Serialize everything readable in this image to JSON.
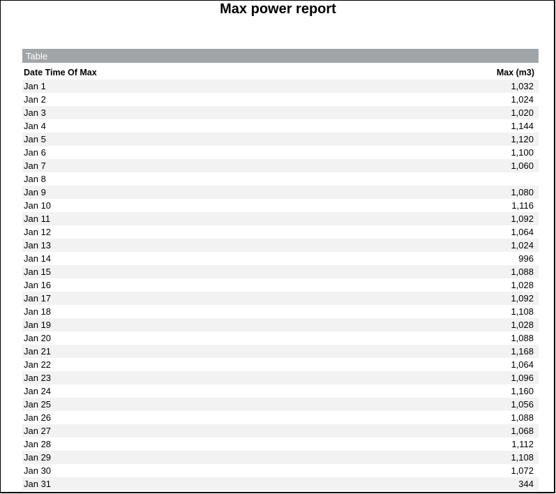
{
  "title": "Max power report",
  "section_label": "Table",
  "columns": [
    "Date Time Of Max",
    "Max (m3)"
  ],
  "rows": [
    [
      "Jan 1",
      "1,032"
    ],
    [
      "Jan 2",
      "1,024"
    ],
    [
      "Jan 3",
      "1,020"
    ],
    [
      "Jan 4",
      "1,144"
    ],
    [
      "Jan 5",
      "1,120"
    ],
    [
      "Jan 6",
      "1,100"
    ],
    [
      "Jan 7",
      "1,060"
    ],
    [
      "Jan 8",
      ""
    ],
    [
      "Jan 9",
      "1,080"
    ],
    [
      "Jan 10",
      "1,116"
    ],
    [
      "Jan 11",
      "1,092"
    ],
    [
      "Jan 12",
      "1,064"
    ],
    [
      "Jan 13",
      "1,024"
    ],
    [
      "Jan 14",
      "996"
    ],
    [
      "Jan 15",
      "1,088"
    ],
    [
      "Jan 16",
      "1,028"
    ],
    [
      "Jan 17",
      "1,092"
    ],
    [
      "Jan 18",
      "1,108"
    ],
    [
      "Jan 19",
      "1,028"
    ],
    [
      "Jan 20",
      "1,088"
    ],
    [
      "Jan 21",
      "1,168"
    ],
    [
      "Jan 22",
      "1,064"
    ],
    [
      "Jan 23",
      "1,096"
    ],
    [
      "Jan 24",
      "1,160"
    ],
    [
      "Jan 25",
      "1,056"
    ],
    [
      "Jan 26",
      "1,088"
    ],
    [
      "Jan 27",
      "1,068"
    ],
    [
      "Jan 28",
      "1,112"
    ],
    [
      "Jan 29",
      "1,108"
    ],
    [
      "Jan 30",
      "1,072"
    ],
    [
      "Jan 31",
      "344"
    ]
  ],
  "colors": {
    "section_bar": "#a1a5a7",
    "row_stripe": "#f2f2f2"
  }
}
